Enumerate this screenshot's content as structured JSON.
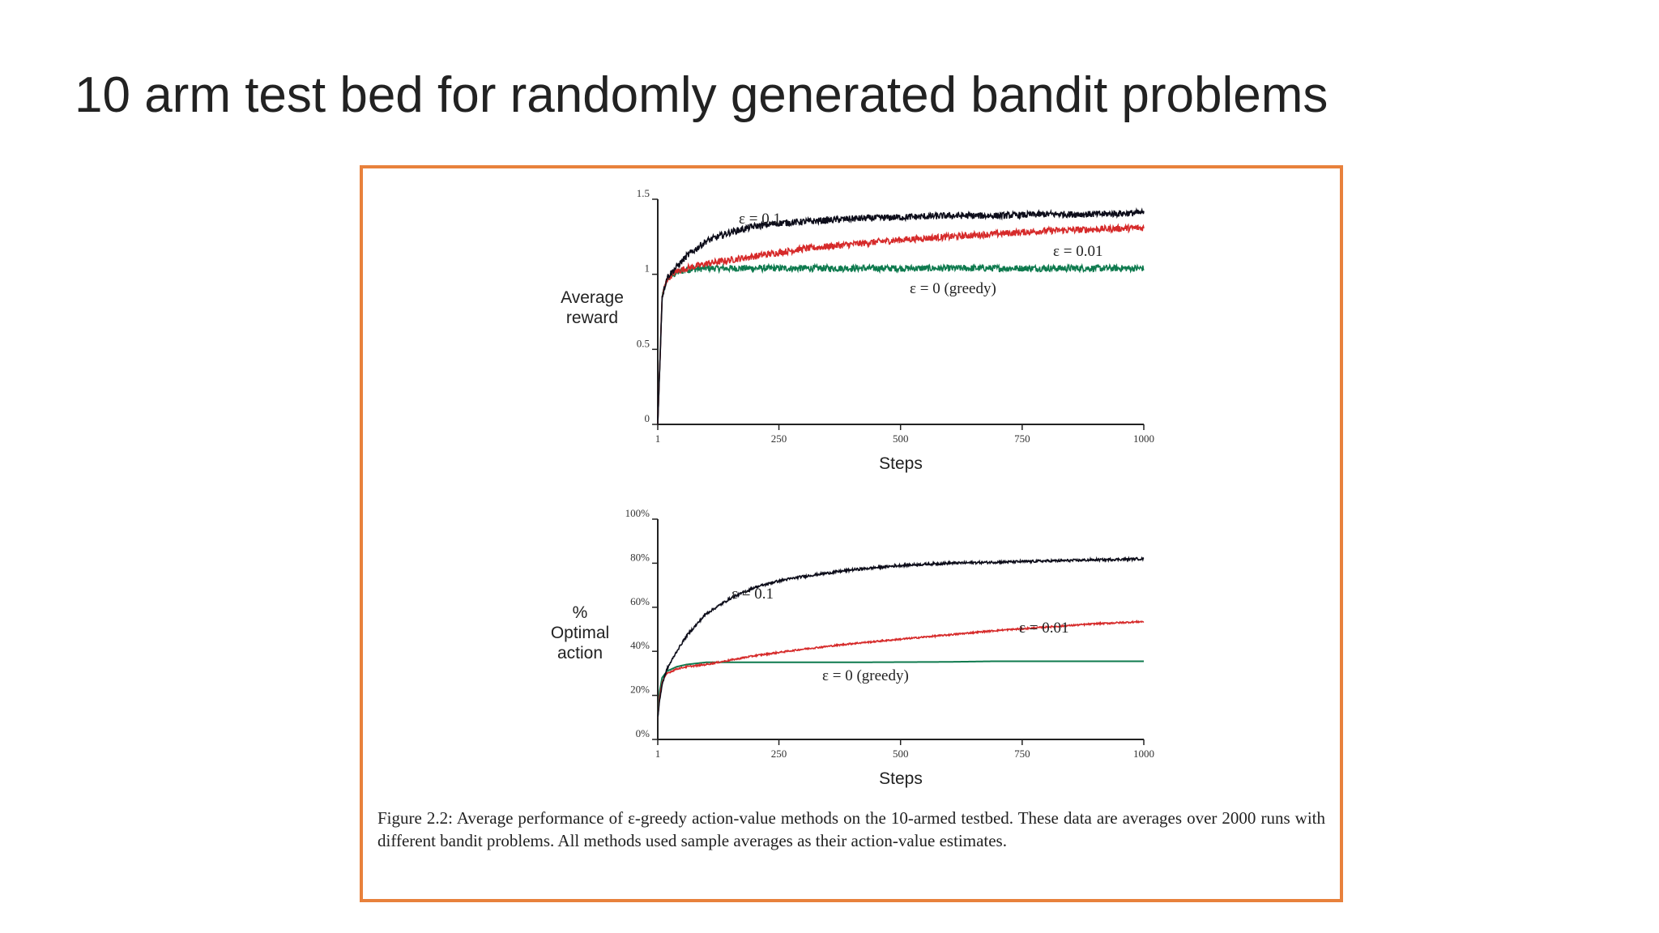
{
  "slide": {
    "title": "10 arm test bed for randomly generated bandit problems"
  },
  "figure": {
    "caption": "Figure 2.2: Average performance of ε-greedy action-value methods on the 10-armed testbed. These data are averages over 2000 runs with different bandit problems. All methods used sample averages as their action-value estimates."
  },
  "colors": {
    "frame": "#e8813c",
    "eps_0_1": "#0d0d1a",
    "eps_0_01": "#d62a2a",
    "eps_0": "#0e7a4e"
  },
  "chart_data": [
    {
      "type": "line",
      "ylabel_lines": [
        "Average",
        "reward"
      ],
      "xlabel": "Steps",
      "xlim": [
        1,
        1000
      ],
      "ylim": [
        0,
        1.5
      ],
      "x_ticks": [
        1,
        250,
        500,
        750,
        1000
      ],
      "x_tick_labels": [
        "1",
        "250",
        "500",
        "750",
        "1000"
      ],
      "y_ticks": [
        0,
        0.5,
        1,
        1.5
      ],
      "y_tick_labels": [
        "0",
        "0.5",
        "1",
        "1.5"
      ],
      "grid": false,
      "series": [
        {
          "name": "ε = 0.1",
          "color": "#0d0d1a",
          "noise": 0.022,
          "x": [
            1,
            10,
            20,
            40,
            60,
            100,
            150,
            200,
            250,
            300,
            400,
            500,
            600,
            700,
            800,
            900,
            1000
          ],
          "y": [
            0.0,
            0.85,
            0.98,
            1.05,
            1.12,
            1.22,
            1.28,
            1.32,
            1.34,
            1.35,
            1.37,
            1.38,
            1.39,
            1.39,
            1.4,
            1.4,
            1.41
          ]
        },
        {
          "name": "ε = 0.01",
          "color": "#d62a2a",
          "noise": 0.022,
          "x": [
            1,
            10,
            20,
            40,
            60,
            100,
            200,
            300,
            400,
            500,
            600,
            700,
            800,
            900,
            1000
          ],
          "y": [
            0.0,
            0.85,
            0.97,
            1.02,
            1.04,
            1.07,
            1.12,
            1.17,
            1.2,
            1.23,
            1.25,
            1.27,
            1.29,
            1.3,
            1.31
          ]
        },
        {
          "name": "ε = 0 (greedy)",
          "color": "#0e7a4e",
          "noise": 0.022,
          "x": [
            1,
            10,
            20,
            40,
            60,
            100,
            200,
            300,
            400,
            500,
            600,
            700,
            800,
            900,
            1000
          ],
          "y": [
            0.0,
            0.85,
            0.97,
            1.01,
            1.03,
            1.04,
            1.04,
            1.04,
            1.04,
            1.04,
            1.04,
            1.04,
            1.04,
            1.04,
            1.04
          ]
        }
      ],
      "annotations": [
        "ε = 0.1",
        "ε = 0.01",
        "ε = 0 (greedy)"
      ]
    },
    {
      "type": "line",
      "ylabel_lines": [
        "%",
        "Optimal",
        "action"
      ],
      "xlabel": "Steps",
      "xlim": [
        1,
        1000
      ],
      "ylim": [
        0,
        100
      ],
      "x_ticks": [
        1,
        250,
        500,
        750,
        1000
      ],
      "x_tick_labels": [
        "1",
        "250",
        "500",
        "750",
        "1000"
      ],
      "y_ticks": [
        0,
        20,
        40,
        60,
        80,
        100
      ],
      "y_tick_labels": [
        "0%",
        "20%",
        "40%",
        "60%",
        "80%",
        "100%"
      ],
      "grid": false,
      "series": [
        {
          "name": "ε = 0.1",
          "color": "#0d0d1a",
          "noise": 0.55,
          "x": [
            1,
            5,
            10,
            20,
            40,
            60,
            100,
            150,
            200,
            250,
            300,
            400,
            500,
            600,
            700,
            800,
            900,
            1000
          ],
          "y": [
            10,
            18,
            25,
            32,
            40,
            47,
            57,
            64,
            69,
            72,
            74,
            77,
            79,
            80,
            80.5,
            81,
            81.5,
            82
          ]
        },
        {
          "name": "ε = 0.01",
          "color": "#d62a2a",
          "noise": 0.35,
          "x": [
            1,
            5,
            10,
            20,
            40,
            60,
            100,
            200,
            300,
            400,
            500,
            600,
            700,
            800,
            900,
            1000
          ],
          "y": [
            10,
            20,
            26,
            30,
            32,
            33,
            34,
            38,
            41,
            43.5,
            45.5,
            47.5,
            49.5,
            51,
            52.5,
            53.5
          ]
        },
        {
          "name": "ε = 0 (greedy)",
          "color": "#0e7a4e",
          "noise": 0.0,
          "x": [
            1,
            5,
            10,
            20,
            40,
            60,
            100,
            200,
            400,
            600,
            700,
            800,
            1000
          ],
          "y": [
            10,
            22,
            28,
            31,
            33,
            34,
            35,
            35,
            35,
            35.2,
            35.5,
            35.5,
            35.5
          ]
        }
      ],
      "annotations": [
        "ε = 0.1",
        "ε = 0.01",
        "ε = 0 (greedy)"
      ]
    }
  ]
}
